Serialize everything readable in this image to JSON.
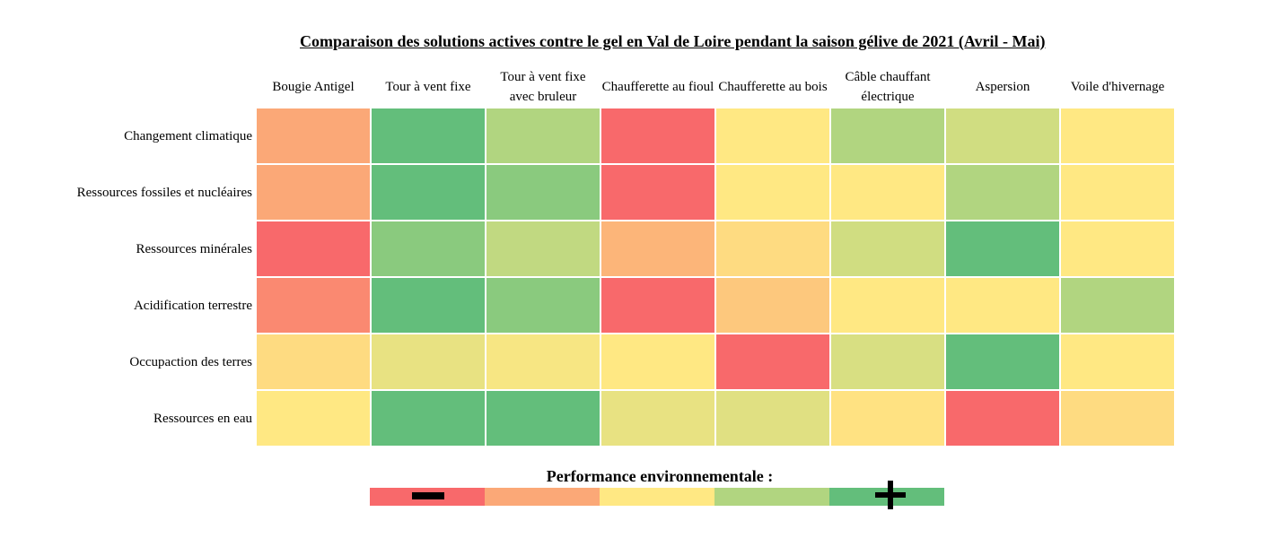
{
  "chart_data": {
    "type": "heatmap",
    "title": "Comparaison des solutions actives contre le gel en Val de Loire pendant la saison gélive de 2021 (Avril - Mai)",
    "columns": [
      "Bougie Antigel",
      "Tour à vent fixe",
      "Tour à vent fixe avec bruleur",
      "Chaufferette au fioul",
      "Chaufferette au bois",
      "Câble chauffant électrique",
      "Aspersion",
      "Voile d'hivernage"
    ],
    "rows": [
      "Changement climatique",
      "Ressources fossiles et nucléaires",
      "Ressources minérales",
      "Acidification terrestre",
      "Occupaction des terres",
      "Ressources en eau"
    ],
    "values": [
      [
        2.0,
        5.0,
        4.0,
        1.0,
        3.0,
        4.0,
        3.6,
        3.0
      ],
      [
        2.0,
        5.0,
        4.5,
        1.0,
        3.0,
        3.0,
        4.0,
        3.0
      ],
      [
        1.0,
        4.5,
        3.8,
        2.2,
        2.8,
        3.6,
        5.0,
        3.0
      ],
      [
        1.5,
        5.0,
        4.5,
        1.0,
        2.5,
        3.0,
        3.0,
        4.0
      ],
      [
        2.8,
        3.3,
        3.1,
        3.0,
        1.0,
        3.5,
        5.0,
        3.0
      ],
      [
        3.0,
        5.0,
        5.0,
        3.3,
        3.4,
        2.9,
        1.0,
        2.8
      ]
    ],
    "value_range": [
      1,
      5
    ],
    "legend": {
      "title": "Performance environnementale :",
      "low_symbol": "minus",
      "high_symbol": "plus",
      "colors": [
        "#f8696b",
        "#fba877",
        "#ffe883",
        "#b1d580",
        "#63be7b"
      ]
    }
  }
}
